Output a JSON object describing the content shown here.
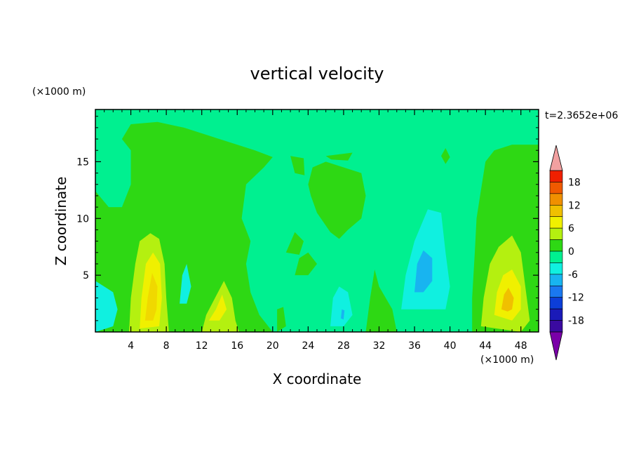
{
  "chart_data": {
    "type": "heatmap",
    "title": "vertical velocity",
    "xlabel": "X coordinate",
    "ylabel": "Z coordinate",
    "x_unit": "(×1000 m)",
    "y_unit": "(×1000 m)",
    "time_label": "t=2.3652e+06",
    "xlim": [
      0,
      50
    ],
    "ylim": [
      0,
      19.6
    ],
    "xticks": [
      4,
      8,
      12,
      16,
      20,
      24,
      28,
      32,
      36,
      40,
      44,
      48
    ],
    "yticks": [
      5,
      10,
      15
    ],
    "colorbar": {
      "levels": [
        -21,
        -18,
        -15,
        -12,
        -9,
        -6,
        -3,
        0,
        3,
        6,
        9,
        12,
        15,
        18,
        21
      ],
      "labels": [
        18,
        12,
        6,
        0,
        -6,
        -12,
        -18
      ],
      "colors": [
        "#7a00a8",
        "#3a0aa0",
        "#1a1ab8",
        "#0c3ed8",
        "#1a78f0",
        "#18b4f0",
        "#10f0e0",
        "#00f090",
        "#2ed814",
        "#b4f010",
        "#f0f000",
        "#f0c000",
        "#f09000",
        "#f05a00",
        "#f02000",
        "#f2a0a0"
      ],
      "extend": "both"
    },
    "grid": false,
    "features": [
      {
        "kind": "updraft",
        "x": 6.5,
        "z": 4.0,
        "peak": 6
      },
      {
        "kind": "updraft",
        "x": 46.5,
        "z": 3.0,
        "peak": 9
      },
      {
        "kind": "updraft",
        "x": 14.0,
        "z": 2.5,
        "peak": 3
      },
      {
        "kind": "downdraft",
        "x": 1.0,
        "z": 2.5,
        "peak": -4
      },
      {
        "kind": "downdraft",
        "x": 37.5,
        "z": 5.5,
        "peak": -5
      },
      {
        "kind": "downdraft",
        "x": 28.0,
        "z": 2.0,
        "peak": -5
      },
      {
        "kind": "downdraft",
        "x": 10.0,
        "z": 4.0,
        "peak": -4
      }
    ]
  }
}
